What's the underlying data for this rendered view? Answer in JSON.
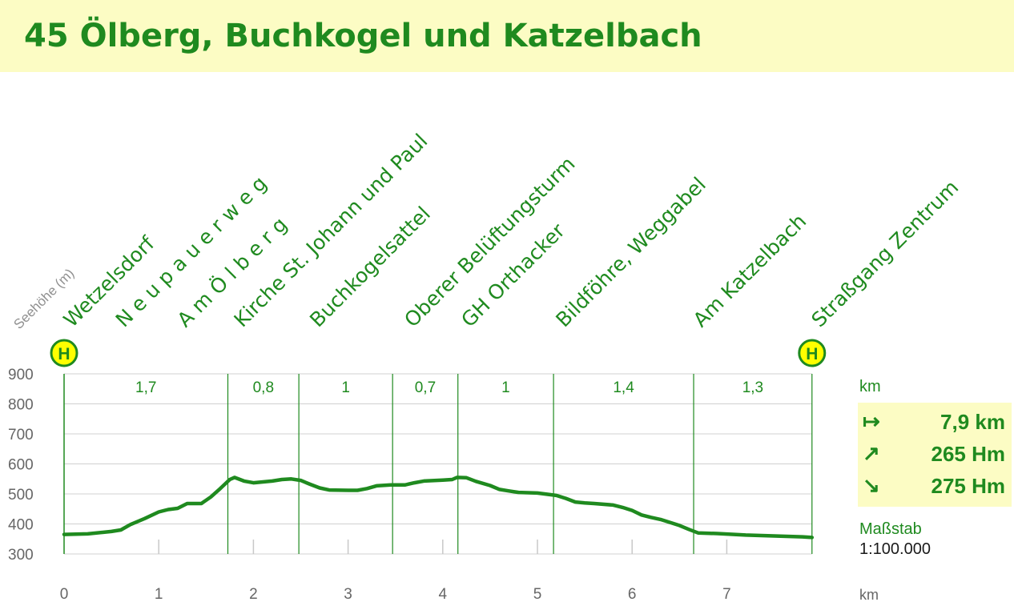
{
  "title": "45  Ölberg, Buchkogel und Katzelbach",
  "colors": {
    "green": "#1f8a1f",
    "title_bg": "#fcfcc4",
    "stop_icon": "#ffff00",
    "axis_text": "#666666"
  },
  "side_panel": {
    "unit_label": "km",
    "stats": [
      {
        "icon": "arrow-right-from-bar-icon",
        "glyph": "↦",
        "value": "7,9 km"
      },
      {
        "icon": "arrow-up-right-icon",
        "glyph": "↗",
        "value": "265 Hm"
      },
      {
        "icon": "arrow-down-right-icon",
        "glyph": "↘",
        "value": "275 Hm"
      }
    ],
    "scale_label": "Maßstab",
    "scale_value": "1:100.000"
  },
  "bus_stop_icon_letter": "H",
  "chart_data": {
    "type": "area",
    "ylabel": "Seehöhe (m)",
    "xlabel": "km",
    "xlim": [
      0,
      7.9
    ],
    "ylim": [
      300,
      900
    ],
    "yticks": [
      300,
      400,
      500,
      600,
      700,
      800,
      900
    ],
    "xticks": [
      0,
      1,
      2,
      3,
      4,
      5,
      6,
      7
    ],
    "waypoints": [
      {
        "name": "Wetzelsdorf",
        "km": 0,
        "bus_stop": true
      },
      {
        "name": "N e u p a u e r w e g",
        "km": 0.55
      },
      {
        "name": "A m   Ö l b e r g",
        "km": 1.2
      },
      {
        "name": "Kirche St. Johann und Paul",
        "km": 1.8
      },
      {
        "name": "Buchkogelsattel",
        "km": 2.6
      },
      {
        "name": "Oberer Belüftungsturm",
        "km": 3.6
      },
      {
        "name": "GH Orthacker",
        "km": 4.2
      },
      {
        "name": "Bildföhre, Weggabel",
        "km": 5.2
      },
      {
        "name": "Am Katzelbach",
        "km": 6.65
      },
      {
        "name": "Straßgang Zentrum",
        "km": 7.9,
        "bus_stop": true
      }
    ],
    "segments": [
      {
        "from": 0,
        "to": 1.73,
        "label": "1,7"
      },
      {
        "from": 1.73,
        "to": 2.48,
        "label": "0,8"
      },
      {
        "from": 2.48,
        "to": 3.47,
        "label": "1"
      },
      {
        "from": 3.47,
        "to": 4.16,
        "label": "0,7"
      },
      {
        "from": 4.16,
        "to": 5.17,
        "label": "1"
      },
      {
        "from": 5.17,
        "to": 6.65,
        "label": "1,4"
      },
      {
        "from": 6.65,
        "to": 7.9,
        "label": "1,3"
      }
    ],
    "profile": [
      [
        0,
        365
      ],
      [
        0.25,
        367
      ],
      [
        0.5,
        375
      ],
      [
        0.6,
        380
      ],
      [
        0.7,
        398
      ],
      [
        0.85,
        418
      ],
      [
        1.0,
        440
      ],
      [
        1.1,
        448
      ],
      [
        1.2,
        452
      ],
      [
        1.3,
        468
      ],
      [
        1.45,
        468
      ],
      [
        1.55,
        490
      ],
      [
        1.65,
        518
      ],
      [
        1.75,
        548
      ],
      [
        1.8,
        555
      ],
      [
        1.9,
        543
      ],
      [
        2.0,
        537
      ],
      [
        2.1,
        540
      ],
      [
        2.2,
        543
      ],
      [
        2.3,
        548
      ],
      [
        2.4,
        550
      ],
      [
        2.5,
        545
      ],
      [
        2.6,
        532
      ],
      [
        2.7,
        520
      ],
      [
        2.8,
        513
      ],
      [
        3.0,
        512
      ],
      [
        3.1,
        512
      ],
      [
        3.2,
        518
      ],
      [
        3.3,
        527
      ],
      [
        3.45,
        530
      ],
      [
        3.6,
        530
      ],
      [
        3.7,
        537
      ],
      [
        3.8,
        543
      ],
      [
        4.0,
        546
      ],
      [
        4.1,
        548
      ],
      [
        4.15,
        555
      ],
      [
        4.25,
        554
      ],
      [
        4.35,
        542
      ],
      [
        4.5,
        528
      ],
      [
        4.6,
        515
      ],
      [
        4.7,
        510
      ],
      [
        4.8,
        505
      ],
      [
        5.0,
        503
      ],
      [
        5.2,
        495
      ],
      [
        5.3,
        485
      ],
      [
        5.4,
        473
      ],
      [
        5.5,
        470
      ],
      [
        5.6,
        468
      ],
      [
        5.8,
        463
      ],
      [
        5.9,
        455
      ],
      [
        6.0,
        445
      ],
      [
        6.1,
        430
      ],
      [
        6.2,
        422
      ],
      [
        6.3,
        415
      ],
      [
        6.4,
        405
      ],
      [
        6.5,
        395
      ],
      [
        6.6,
        382
      ],
      [
        6.7,
        370
      ],
      [
        6.9,
        368
      ],
      [
        7.2,
        363
      ],
      [
        7.5,
        360
      ],
      [
        7.8,
        357
      ],
      [
        7.9,
        355
      ]
    ]
  }
}
